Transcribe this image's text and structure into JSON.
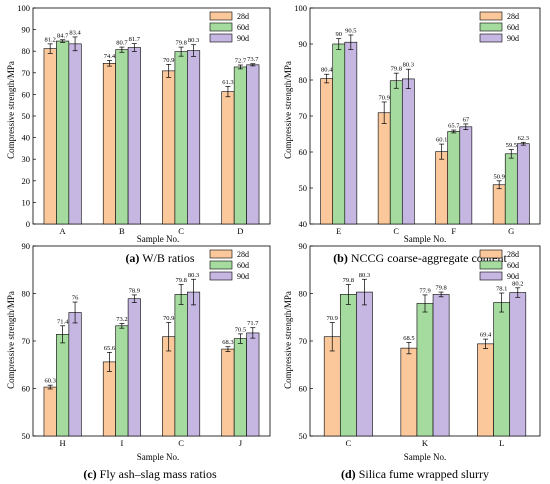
{
  "colors": {
    "28d": "#FBC89C",
    "60d": "#A6DBA0",
    "90d": "#C6B7E2",
    "edge": "#000000"
  },
  "chart_data": [
    {
      "id": "a",
      "type": "bar",
      "caption_letter": "(a)",
      "caption_text": " W/B ratios",
      "xlabel": "Sample No.",
      "ylabel": "Compressive strength/MPa",
      "ylim": [
        0,
        100
      ],
      "yticks": [
        0,
        10,
        20,
        30,
        40,
        50,
        60,
        70,
        80,
        90,
        100
      ],
      "categories": [
        "A",
        "B",
        "C",
        "D"
      ],
      "legend_position": "top-right",
      "series": [
        {
          "name": "28d",
          "values": [
            81.2,
            74.4,
            70.9,
            61.3
          ],
          "labels": [
            "81.2",
            "74.4",
            "70.9",
            "61.3"
          ],
          "errors": [
            2.2,
            1.3,
            3.0,
            2.4
          ]
        },
        {
          "name": "60d",
          "values": [
            84.7,
            80.7,
            79.8,
            72.7
          ],
          "labels": [
            "84.7",
            "80.7",
            "79.8",
            "72.7"
          ],
          "errors": [
            0.6,
            1.2,
            2.1,
            0.9
          ]
        },
        {
          "name": "90d",
          "values": [
            83.4,
            81.7,
            80.3,
            73.7
          ],
          "labels": [
            "83.4",
            "81.7",
            "80.3",
            "73.7"
          ],
          "errors": [
            3.2,
            1.8,
            2.7,
            0.5
          ]
        }
      ]
    },
    {
      "id": "b",
      "type": "bar",
      "caption_letter": "(b)",
      "caption_text": " NCCG coarse-aggregate content",
      "xlabel": "Sample No.",
      "ylabel": "Compressive strength/MPa",
      "ylim": [
        40,
        100
      ],
      "yticks": [
        40,
        50,
        60,
        70,
        80,
        90,
        100
      ],
      "categories": [
        "E",
        "C",
        "F",
        "G"
      ],
      "legend_position": "top-right",
      "series": [
        {
          "name": "28d",
          "values": [
            80.4,
            70.9,
            60.1,
            50.9
          ],
          "labels": [
            "80.4",
            "70.9",
            "60.1",
            "50.9"
          ],
          "errors": [
            1.2,
            3.0,
            2.1,
            1.1
          ]
        },
        {
          "name": "60d",
          "values": [
            90,
            79.8,
            65.7,
            59.5
          ],
          "labels": [
            "90",
            "79.8",
            "65.7",
            "59.5"
          ],
          "errors": [
            1.5,
            2.1,
            0.4,
            1.2
          ]
        },
        {
          "name": "90d",
          "values": [
            90.5,
            80.3,
            67,
            62.3
          ],
          "labels": [
            "90.5",
            "80.3",
            "67",
            "62.3"
          ],
          "errors": [
            2.0,
            2.7,
            0.8,
            0.4
          ]
        }
      ]
    },
    {
      "id": "c",
      "type": "bar",
      "caption_letter": "(c)",
      "caption_text": " Fly ash–slag mass ratios",
      "xlabel": "Sample No.",
      "ylabel": "Compressive strength/MPa",
      "ylim": [
        50,
        90
      ],
      "yticks": [
        50,
        60,
        70,
        80,
        90
      ],
      "categories": [
        "H",
        "I",
        "C",
        "J"
      ],
      "legend_position": "top-right",
      "series": [
        {
          "name": "28d",
          "values": [
            60.3,
            65.6,
            70.9,
            68.3
          ],
          "labels": [
            "60.3",
            "65.6",
            "70.9",
            "68.3"
          ],
          "errors": [
            0.4,
            2.0,
            3.0,
            0.5
          ]
        },
        {
          "name": "60d",
          "values": [
            71.4,
            73.2,
            79.8,
            70.5
          ],
          "labels": [
            "71.4",
            "73.2",
            "79.8",
            "70.5"
          ],
          "errors": [
            1.8,
            0.5,
            2.1,
            1.0
          ]
        },
        {
          "name": "90d",
          "values": [
            76,
            78.9,
            80.3,
            71.7
          ],
          "labels": [
            "76",
            "78.9",
            "80.3",
            "71.7"
          ],
          "errors": [
            2.2,
            0.8,
            2.7,
            1.1
          ]
        }
      ]
    },
    {
      "id": "d",
      "type": "bar",
      "caption_letter": "(d)",
      "caption_text": " Silica fume wrapped slurry",
      "xlabel": "Sample No.",
      "ylabel": "Compressive strength/MPa",
      "ylim": [
        50,
        90
      ],
      "yticks": [
        50,
        60,
        70,
        80,
        90
      ],
      "categories": [
        "C",
        "K",
        "L"
      ],
      "legend_position": "top-right",
      "series": [
        {
          "name": "28d",
          "values": [
            70.9,
            68.5,
            69.4
          ],
          "labels": [
            "70.9",
            "68.5",
            "69.4"
          ],
          "errors": [
            3.0,
            1.2,
            1.0
          ]
        },
        {
          "name": "60d",
          "values": [
            79.8,
            77.9,
            78.1
          ],
          "labels": [
            "79.8",
            "77.9",
            "78.1"
          ],
          "errors": [
            2.1,
            1.8,
            2.0
          ]
        },
        {
          "name": "90d",
          "values": [
            80.3,
            79.8,
            80.2
          ],
          "labels": [
            "80.3",
            "79.8",
            "80.2"
          ],
          "errors": [
            2.7,
            0.5,
            1.0
          ]
        }
      ]
    }
  ]
}
